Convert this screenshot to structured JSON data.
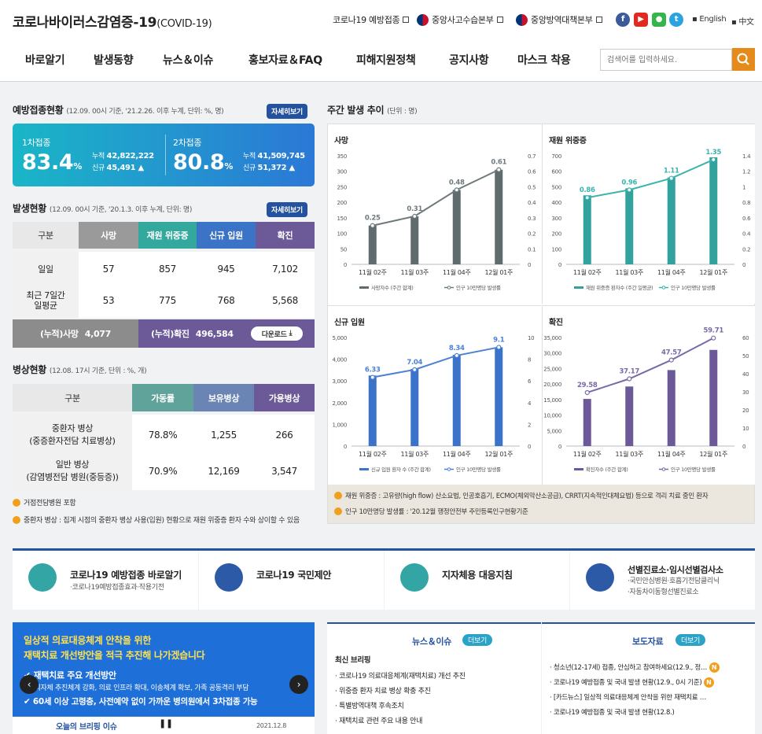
{
  "header": {
    "logo_main": "코로나바이러스감염증-19",
    "logo_sub": "(COVID-19)",
    "links": [
      "코로나19 예방접종",
      "중앙사고수습본부",
      "중앙방역대책본부"
    ],
    "social": [
      "f",
      "▶",
      "●",
      "t"
    ],
    "langs": [
      "English",
      "中文"
    ],
    "nav": [
      "바로알기",
      "발생동향",
      "뉴스＆이슈",
      "홍보자료＆FAQ",
      "피해지원정책",
      "공지사항",
      "마스크 착용"
    ],
    "search_placeholder": "검색어를 입력하세요."
  },
  "vaccination": {
    "title": "예방접종현황",
    "sub": "(12.09. 00시 기준, '21.2.26. 이후 누계, 단위: %, 명)",
    "more": "자세히보기",
    "first": {
      "label": "1차접종",
      "pct": "83.4",
      "unit": "%",
      "cum_label": "누적",
      "cum": "42,822,222",
      "new_label": "신규",
      "new": "45,491 ▲"
    },
    "second": {
      "label": "2차접종",
      "pct": "80.8",
      "unit": "%",
      "cum_label": "누적",
      "cum": "41,509,745",
      "new_label": "신규",
      "new": "51,372 ▲"
    }
  },
  "occurrence": {
    "title": "발생현황",
    "sub": "(12.09. 00시 기준, '20.1.3. 이후 누계, 단위: 명)",
    "more": "자세히보기",
    "headers": [
      "구분",
      "사망",
      "재원 위중증",
      "신규 입원",
      "확진"
    ],
    "rows": [
      [
        "일일",
        "57",
        "857",
        "945",
        "7,102"
      ],
      [
        "최근 7일간\n일평균",
        "53",
        "775",
        "768",
        "5,568"
      ]
    ],
    "cum_death_label": "(누적)사망",
    "cum_death": "4,077",
    "cum_conf_label": "(누적)확진",
    "cum_conf": "496,584",
    "download": "다운로드"
  },
  "beds": {
    "title": "병상현황",
    "sub": "(12.08. 17시 기준, 단위 : %, 개)",
    "headers": [
      "구분",
      "가동률",
      "보유병상",
      "가용병상"
    ],
    "rows": [
      [
        "중환자 병상\n(중증환자전담 치료병상)",
        "78.8%",
        "1,255",
        "266"
      ],
      [
        "일반 병상\n(감염병전담 병원(중등증))",
        "70.9%",
        "12,169",
        "3,547"
      ]
    ],
    "notes": [
      "거점전담병원 포함",
      "중환자 병상 : 집계 시점의 중환자 병상 사용(입원) 현황으로 재원 위중증 환자 수와 상이할 수 있음"
    ]
  },
  "weekly": {
    "title": "주간 발생 추이",
    "sub": "(단위 : 명)",
    "notes": [
      "재원 위중증 : 고유량(high flow) 산소요법, 인공호흡기, ECMO(체외막산소공급), CRRT(지속적인대체요법) 등으로 격리 치료 중인 환자",
      "인구 10만명당 발생률 : '20.12월 행정안전부 주민등록인구현황기준"
    ]
  },
  "chart_data": [
    {
      "type": "bar",
      "title": "사망",
      "categories": [
        "11월 02주",
        "11월 03주",
        "11월 04주",
        "12월 01주"
      ],
      "values": [
        125,
        155,
        240,
        305
      ],
      "line_values": [
        0.25,
        0.31,
        0.48,
        0.61
      ],
      "line_labels": [
        "0.25",
        "0.31",
        "0.48",
        "0.61"
      ],
      "ylim": [
        0,
        350
      ],
      "y_ticks": [
        "0",
        "50",
        "100",
        "150",
        "200",
        "250",
        "300",
        "350"
      ],
      "y2lim": [
        0,
        0.7
      ],
      "y2_ticks": [
        "0",
        "0.1",
        "0.2",
        "0.3",
        "0.4",
        "0.5",
        "0.6",
        "0.7"
      ],
      "bar_color": "#5f6b6d",
      "line_color": "#6e7a7c",
      "legend": [
        "사망자수 (주간 합계)",
        "인구 10만명당 발생률"
      ]
    },
    {
      "type": "bar",
      "title": "재원 위중증",
      "categories": [
        "11월 02주",
        "11월 03주",
        "11월 04주",
        "12월 01주"
      ],
      "values": [
        445,
        490,
        560,
        690
      ],
      "line_values": [
        0.86,
        0.96,
        1.11,
        1.35
      ],
      "line_labels": [
        "0.86",
        "0.96",
        "1.11",
        "1.35"
      ],
      "ylim": [
        0,
        700
      ],
      "y_ticks": [
        "0",
        "100",
        "200",
        "300",
        "400",
        "500",
        "600",
        "700"
      ],
      "y2lim": [
        0,
        1.4
      ],
      "y2_ticks": [
        "0",
        "0.2",
        "0.4",
        "0.6",
        "0.8",
        "1",
        "1.2",
        "1.4"
      ],
      "bar_color": "#31a29e",
      "line_color": "#3bb3ae",
      "legend": [
        "재원 위중증 환자수 (주간 일평균)",
        "인구 10만명당 발생률"
      ]
    },
    {
      "type": "bar",
      "title": "신규 입원",
      "categories": [
        "11월 02주",
        "11월 03주",
        "11월 04주",
        "12월 01주"
      ],
      "values": [
        3250,
        3550,
        4200,
        4550
      ],
      "line_values": [
        6.33,
        7.04,
        8.34,
        9.1
      ],
      "line_labels": [
        "6.33",
        "7.04",
        "8.34",
        "9.1"
      ],
      "ylim": [
        0,
        5000
      ],
      "y_ticks": [
        "0",
        "1,000",
        "2,000",
        "3,000",
        "4,000",
        "5,000"
      ],
      "y2lim": [
        0,
        10
      ],
      "y2_ticks": [
        "0",
        "2",
        "4",
        "6",
        "8",
        "10"
      ],
      "bar_color": "#3a73c9",
      "line_color": "#4b82d6",
      "legend": [
        "신규 입원 환자 수 (주간 합계)",
        "인구 10만명당 발생률"
      ]
    },
    {
      "type": "bar",
      "title": "확진",
      "categories": [
        "11월 02주",
        "11월 03주",
        "11월 04주",
        "12월 01주"
      ],
      "values": [
        15200,
        19200,
        24500,
        31000
      ],
      "line_values": [
        29.58,
        37.17,
        47.57,
        59.71
      ],
      "line_labels": [
        "29.58",
        "37.17",
        "47.57",
        "59.71"
      ],
      "ylim": [
        0,
        35000
      ],
      "y_ticks": [
        "0",
        "5,000",
        "10,000",
        "15,000",
        "20,000",
        "25,000",
        "30,000",
        "35,000"
      ],
      "y2lim": [
        0,
        60
      ],
      "y2_ticks": [
        "0",
        "10",
        "20",
        "30",
        "40",
        "50",
        "60"
      ],
      "bar_color": "#6b5a97",
      "line_color": "#7a69a8",
      "legend": [
        "확진자수 (주간 합계)",
        "인구 10만명당 발생률"
      ]
    }
  ],
  "quick": [
    {
      "title": "코로나19 예방접종 바로알기",
      "sub": "·코로나19예방접종효과·작용기전"
    },
    {
      "title": "코로나19 국민제안",
      "sub": ""
    },
    {
      "title": "지자체용 대응지침",
      "sub": ""
    },
    {
      "title": "선별진료소·임시선별검사소",
      "sub": "·국민안심병원·호흡기전담클리닉\n·자동차이동형선별진료소"
    }
  ],
  "banner": {
    "l1": "일상적 의료대응체계 안착을 위한",
    "l2": "재택치료 개선방안을 적극 추진해 나가겠습니다",
    "l3": "재택치료 주요 개선방안",
    "l4": "- 지자체 추진체계 강화, 의료 인프라 확대, 이송체계 확보, 가족 공동격리 부담",
    "l5": "60세 이상 고령층, 사전예약 없이 가까운 병의원에서 3차접종 가능",
    "caption": "오늘의 브리핑 이슈",
    "date": "2021.12.8"
  },
  "news": {
    "title": "뉴스＆이슈",
    "more": "더보기",
    "sub": "최신 브리핑",
    "items": [
      "코로나19 의료대응체계(재택치료) 개선 추진",
      "위중증 환자 치료 병상 확충 추진",
      "특별방역대책 후속조치",
      "재택치료 관련 주요 내용 안내"
    ]
  },
  "press": {
    "title": "보도자료",
    "more": "더보기",
    "items": [
      "청소년(12-17세) 접종, 안심하고 참여하세요(12.9., 정…",
      "코로나19 예방접종 및 국내 발생 현황(12.9., 0시 기준)",
      "[카드뉴스] 일상적 의료대응체계 안착을 위한 재택치료 …",
      "코로나19 예방접종 및 국내 발생 현황(12.8.)"
    ],
    "badge": "N"
  },
  "colors": {
    "accent": "#24529f",
    "orange": "#e48b1c"
  }
}
